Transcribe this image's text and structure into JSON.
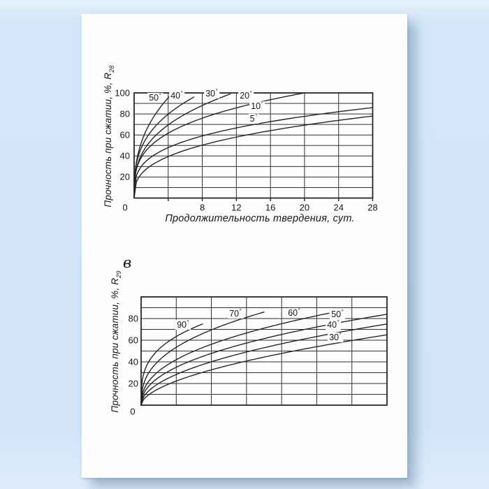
{
  "corner_label": "в",
  "colors": {
    "background": "#d3e6f8",
    "page": "#fefefe",
    "ink": "#161616",
    "line": "#262626",
    "grid": "#2e2e2e"
  },
  "chart_data": [
    {
      "type": "line",
      "title": "",
      "ylabel_main": "Прочность при сжатии, %, R",
      "ylabel_sub": "28",
      "xlabel": "Продолжительность твердения, сут.",
      "xlim": [
        0,
        28
      ],
      "ylim": [
        0,
        100
      ],
      "grid": true,
      "x_grid_step": 4,
      "y_grid_step": 10,
      "origin_label": "0",
      "x_ticks": [
        8,
        12,
        16,
        20,
        24,
        28
      ],
      "x_tick_labels": [
        "8",
        "12",
        "16",
        "20",
        "24",
        "28"
      ],
      "y_ticks": [
        100,
        80,
        60,
        40,
        20
      ],
      "y_tick_labels": [
        "100",
        "80",
        "60",
        "40",
        "20"
      ],
      "legend_position": "inline-curve-labels",
      "series": [
        {
          "name": "50°",
          "label": "50",
          "fit": {
            "end_day": 4.3,
            "end_pct": 98,
            "p": 0.38
          },
          "x": [
            0,
            1,
            2,
            3,
            4.3
          ],
          "y": [
            0,
            56,
            73,
            86,
            98
          ]
        },
        {
          "name": "40°",
          "label": "40",
          "fit": {
            "end_day": 7,
            "end_pct": 96,
            "p": 0.33
          },
          "x": [
            0,
            1,
            2,
            4,
            7
          ],
          "y": [
            0,
            50,
            64,
            80,
            96
          ]
        },
        {
          "name": "30°",
          "label": "30",
          "fit": {
            "end_day": 11.3,
            "end_pct": 99,
            "p": 0.34
          },
          "x": [
            0,
            1,
            2,
            4,
            8,
            11.3
          ],
          "y": [
            0,
            43,
            55,
            70,
            88,
            99
          ]
        },
        {
          "name": "20°",
          "label": "20",
          "fit": {
            "end_day": 20,
            "end_pct": 100,
            "p": 0.3
          },
          "x": [
            0,
            1,
            2,
            4,
            8,
            12,
            16,
            20
          ],
          "y": [
            0,
            41,
            50,
            62,
            76,
            86,
            93,
            100
          ]
        },
        {
          "name": "10°",
          "label": "10",
          "fit": {
            "end_day": 28,
            "end_pct": 86,
            "p": 0.3
          },
          "x": [
            0,
            2,
            4,
            8,
            12,
            16,
            20,
            24,
            28
          ],
          "y": [
            0,
            39,
            48,
            59,
            67,
            73,
            77,
            82,
            86
          ]
        },
        {
          "name": "5°",
          "label": "5",
          "fit": {
            "end_day": 28,
            "end_pct": 78,
            "p": 0.35
          },
          "x": [
            0,
            2,
            4,
            8,
            12,
            16,
            20,
            24,
            28
          ],
          "y": [
            0,
            31,
            39,
            50,
            58,
            64,
            69,
            73,
            78
          ]
        }
      ]
    },
    {
      "type": "line",
      "title": "в",
      "ylabel_main": "Прочность при сжатии, %, R",
      "ylabel_sub": "29",
      "xlabel": "",
      "xlim": [
        0,
        28
      ],
      "ylim": [
        0,
        100
      ],
      "grid": true,
      "x_grid_step": 4,
      "y_grid_step": 10,
      "origin_label": "0",
      "x_ticks": [],
      "x_tick_labels": [],
      "y_ticks": [
        80,
        60,
        40,
        20
      ],
      "y_tick_labels": [
        "80",
        "60",
        "40",
        "20"
      ],
      "legend_position": "inline-curve-labels",
      "series": [
        {
          "name": "90°",
          "label": "90",
          "fit": {
            "end_day": 7,
            "end_pct": 75,
            "p": 0.3
          },
          "x": [
            0,
            1,
            2,
            4,
            7
          ],
          "y": [
            0,
            42,
            52,
            63,
            75
          ]
        },
        {
          "name": "70°",
          "label": "70",
          "fit": {
            "end_day": 14,
            "end_pct": 86,
            "p": 0.38
          },
          "x": [
            0,
            1,
            2,
            4,
            8,
            12,
            14
          ],
          "y": [
            0,
            31,
            41,
            53,
            69,
            81,
            86
          ]
        },
        {
          "name": "60°",
          "label": "60",
          "fit": {
            "end_day": 21.4,
            "end_pct": 85,
            "p": 0.42
          },
          "x": [
            0,
            1,
            2,
            4,
            8,
            12,
            16,
            21.4
          ],
          "y": [
            0,
            23,
            31,
            42,
            56,
            66,
            75,
            85
          ]
        },
        {
          "name": "50°",
          "label": "50",
          "fit": {
            "end_day": 28,
            "end_pct": 84,
            "p": 0.45
          },
          "x": [
            0,
            2,
            4,
            8,
            12,
            16,
            20,
            24,
            28
          ],
          "y": [
            0,
            26,
            35,
            48,
            58,
            65,
            72,
            78,
            84
          ]
        },
        {
          "name": "40°",
          "label": "40",
          "fit": {
            "end_day": 28,
            "end_pct": 75,
            "p": 0.5
          },
          "x": [
            0,
            2,
            4,
            8,
            12,
            16,
            20,
            24,
            28
          ],
          "y": [
            0,
            20,
            28,
            40,
            49,
            57,
            63,
            69,
            75
          ]
        },
        {
          "name": "30°",
          "label": "30",
          "fit": {
            "end_day": 28,
            "end_pct": 65,
            "p": 0.55
          },
          "x": [
            0,
            2,
            4,
            8,
            12,
            16,
            20,
            24,
            28
          ],
          "y": [
            0,
            15,
            22,
            33,
            41,
            48,
            54,
            60,
            65
          ]
        }
      ]
    }
  ]
}
